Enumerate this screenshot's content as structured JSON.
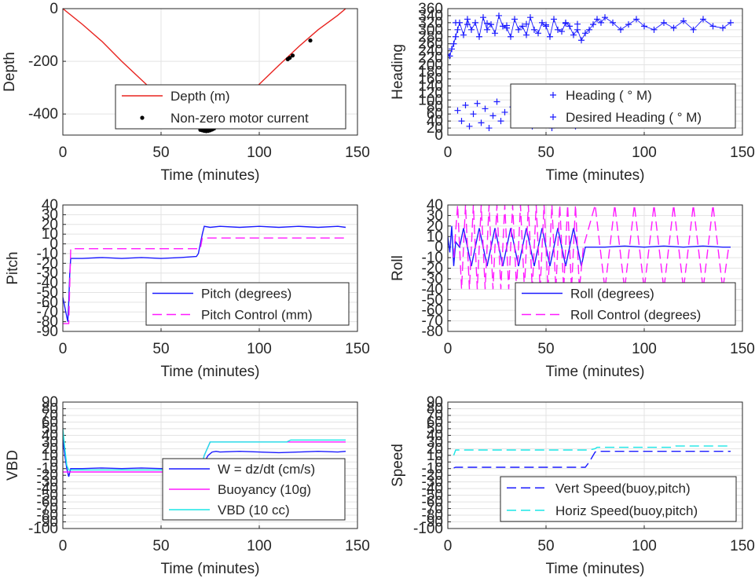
{
  "colors": {
    "red": "#e8231f",
    "blue": "#1a1aff",
    "magenta": "#ff1aff",
    "cyan": "#1ae6e6",
    "black": "#000000",
    "grid": "#e3e3e3",
    "axis": "#262626"
  },
  "chart_data": [
    {
      "id": "depth",
      "type": "line",
      "xlabel": "Time (minutes)",
      "ylabel": "Depth",
      "xlim": [
        0,
        150
      ],
      "ylim": [
        -480,
        0
      ],
      "xticks": [
        0,
        50,
        100,
        150
      ],
      "yticks": [
        0,
        -200,
        -400
      ],
      "ytick_labels": [
        "0",
        "-200",
        "-400"
      ],
      "grid": true,
      "legend_position": "bottom-right",
      "legend": [
        "Depth (m)",
        "Non-zero motor current"
      ],
      "series": [
        {
          "name": "Depth (m)",
          "style": "line",
          "color": "red",
          "x": [
            0,
            10,
            20,
            30,
            40,
            50,
            60,
            66,
            70,
            72,
            74,
            76,
            80,
            90,
            100,
            110,
            120,
            130,
            140,
            144
          ],
          "y": [
            0,
            -60,
            -125,
            -200,
            -270,
            -340,
            -405,
            -442,
            -460,
            -464,
            -462,
            -455,
            -428,
            -357,
            -287,
            -215,
            -145,
            -80,
            -25,
            0
          ]
        },
        {
          "name": "Non-zero motor current",
          "style": "dot",
          "color": "black",
          "x": [
            70,
            71,
            72,
            73,
            74,
            75,
            76,
            77,
            114.5,
            115.5,
            117,
            126
          ],
          "y": [
            -460,
            -462,
            -464,
            -465,
            -464,
            -462,
            -459,
            -455,
            -192,
            -187,
            -178,
            -121
          ]
        }
      ]
    },
    {
      "id": "heading",
      "type": "scatter",
      "xlabel": "Time (minutes)",
      "ylabel": "Heading",
      "xlim": [
        0,
        150
      ],
      "ylim": [
        0,
        360
      ],
      "xticks": [
        0,
        50,
        100,
        150
      ],
      "yticks": [
        0,
        20,
        40,
        60,
        80,
        100,
        120,
        140,
        160,
        180,
        200,
        220,
        240,
        260,
        280,
        300,
        320,
        340,
        360
      ],
      "grid": true,
      "legend_position": "bottom-right",
      "legend": [
        "Heading ( ° M)",
        "Desired Heading ( ° M)"
      ],
      "series": [
        {
          "name": "Heading ( ° M)",
          "style": "plus-line",
          "color": "blue",
          "x": [
            0,
            1,
            2,
            3,
            4,
            5,
            6,
            8,
            10,
            12,
            14,
            16,
            18,
            20,
            22,
            24,
            26,
            28,
            30,
            32,
            34,
            36,
            38,
            40,
            42,
            44,
            46,
            48,
            50,
            52,
            54,
            56,
            58,
            60,
            62,
            64,
            66,
            68,
            70,
            72,
            74,
            76,
            78,
            80,
            84,
            88,
            92,
            96,
            100,
            105,
            110,
            115,
            120,
            125,
            130,
            135,
            140,
            144
          ],
          "y": [
            230,
            225,
            245,
            260,
            280,
            300,
            320,
            285,
            330,
            300,
            320,
            280,
            335,
            300,
            315,
            290,
            340,
            310,
            305,
            280,
            330,
            300,
            310,
            285,
            335,
            300,
            290,
            320,
            310,
            280,
            330,
            300,
            295,
            320,
            310,
            285,
            300,
            270,
            290,
            300,
            315,
            330,
            320,
            335,
            320,
            300,
            315,
            330,
            310,
            300,
            320,
            305,
            325,
            300,
            330,
            310,
            305,
            320
          ]
        },
        {
          "name": "Heading low band",
          "style": "plus",
          "color": "blue",
          "x": [
            5,
            7,
            9,
            11,
            13,
            15,
            17,
            19,
            21,
            23,
            25,
            27,
            29,
            33,
            35,
            37,
            39,
            41,
            43,
            45,
            47,
            49,
            51,
            53,
            55,
            57,
            59,
            61,
            63,
            65
          ],
          "y": [
            70,
            40,
            85,
            25,
            60,
            90,
            35,
            75,
            20,
            55,
            95,
            40,
            65,
            80,
            30,
            60,
            45,
            85,
            25,
            70,
            50,
            35,
            75,
            20,
            60,
            45,
            30,
            55,
            40,
            25
          ]
        },
        {
          "name": "Desired Heading ( ° M)",
          "style": "plus",
          "color": "blue",
          "x": [
            4,
            10,
            20,
            30,
            40,
            50,
            60,
            66
          ],
          "y": [
            320,
            315,
            318,
            312,
            316,
            314,
            318,
            316
          ]
        }
      ]
    },
    {
      "id": "pitch",
      "type": "line",
      "xlabel": "Time (minutes)",
      "ylabel": "Pitch",
      "xlim": [
        0,
        150
      ],
      "ylim": [
        -90,
        40
      ],
      "xticks": [
        0,
        50,
        100,
        150
      ],
      "yticks": [
        40,
        30,
        20,
        10,
        0,
        -10,
        -20,
        -30,
        -40,
        -50,
        -60,
        -70,
        -80,
        -90
      ],
      "ytick_labels": [
        "40",
        "30",
        "20",
        "10",
        "0",
        "-10",
        "-20",
        "-30",
        "-40",
        "-50",
        "-60",
        "-70",
        "-80",
        "-90"
      ],
      "grid": true,
      "legend_position": "bottom-right",
      "legend": [
        "Pitch (degrees)",
        "Pitch Control (mm)"
      ],
      "series": [
        {
          "name": "Pitch (degrees)",
          "style": "line",
          "color": "blue",
          "x": [
            0,
            1,
            2,
            2.5,
            3,
            3.5,
            4,
            10,
            20,
            30,
            40,
            50,
            60,
            68,
            69,
            70,
            71,
            72,
            75,
            80,
            90,
            100,
            110,
            120,
            130,
            140,
            144
          ],
          "y": [
            -55,
            -65,
            -75,
            -80,
            -60,
            -30,
            -15,
            -15,
            -14,
            -15,
            -14,
            -15,
            -14,
            -13,
            -10,
            0,
            10,
            18,
            17,
            18,
            17,
            18,
            17,
            18,
            17,
            18,
            17
          ]
        },
        {
          "name": "Pitch Control (mm)",
          "style": "dash",
          "color": "magenta",
          "x": [
            0,
            3,
            4,
            70,
            71,
            72,
            144
          ],
          "y": [
            -82,
            -82,
            -5,
            -5,
            6,
            6,
            6
          ]
        }
      ]
    },
    {
      "id": "roll",
      "type": "line",
      "xlabel": "Time (minutes)",
      "ylabel": "Roll",
      "xlim": [
        0,
        150
      ],
      "ylim": [
        -80,
        40
      ],
      "xticks": [
        0,
        50,
        100,
        150
      ],
      "yticks": [
        40,
        30,
        20,
        10,
        0,
        -10,
        -20,
        -30,
        -40,
        -50,
        -60,
        -70,
        -80
      ],
      "ytick_labels": [
        "40",
        "30",
        "20",
        "10",
        "0",
        "-10",
        "-20",
        "-30",
        "-40",
        "-50",
        "-60",
        "-70",
        "-80"
      ],
      "grid": true,
      "legend_position": "bottom-right",
      "legend": [
        "Roll (degrees)",
        "Roll Control (degrees)"
      ],
      "series": [
        {
          "name": "Roll (degrees)",
          "style": "line",
          "color": "blue",
          "x": [
            0,
            1,
            2,
            3,
            4,
            6,
            8,
            10,
            12,
            14,
            16,
            18,
            20,
            22,
            24,
            26,
            28,
            30,
            32,
            34,
            36,
            38,
            40,
            42,
            44,
            46,
            48,
            50,
            52,
            54,
            56,
            58,
            60,
            62,
            64,
            66,
            68,
            70,
            80,
            90,
            100,
            110,
            120,
            130,
            140,
            144
          ],
          "y": [
            10,
            -5,
            20,
            -18,
            5,
            0,
            18,
            0,
            -18,
            0,
            18,
            0,
            -18,
            0,
            18,
            0,
            -18,
            0,
            18,
            0,
            -18,
            0,
            18,
            0,
            -18,
            0,
            18,
            0,
            -18,
            0,
            18,
            0,
            -18,
            0,
            18,
            0,
            -18,
            0,
            0,
            1,
            0,
            1,
            0,
            1,
            0,
            0
          ]
        },
        {
          "name": "Roll Control (degrees)",
          "style": "dash",
          "color": "magenta",
          "x": [
            3,
            5,
            7,
            9,
            11,
            13,
            15,
            17,
            19,
            21,
            23,
            25,
            27,
            29,
            31,
            33,
            35,
            37,
            39,
            41,
            43,
            45,
            47,
            49,
            51,
            53,
            55,
            57,
            59,
            61,
            63,
            65,
            67,
            69,
            75,
            80,
            85,
            90,
            95,
            100,
            105,
            110,
            115,
            120,
            125,
            130,
            135,
            140,
            143
          ],
          "y": [
            -10,
            40,
            -40,
            40,
            -40,
            40,
            -40,
            40,
            -40,
            40,
            -40,
            40,
            -40,
            40,
            -40,
            40,
            -40,
            40,
            -40,
            40,
            -40,
            40,
            -40,
            40,
            -40,
            40,
            -40,
            40,
            -40,
            40,
            -40,
            40,
            -40,
            0,
            40,
            -40,
            40,
            -40,
            40,
            -40,
            40,
            -40,
            40,
            -40,
            40,
            -40,
            40,
            -40,
            0
          ]
        }
      ]
    },
    {
      "id": "vbd",
      "type": "line",
      "xlabel": "Time (minutes)",
      "ylabel": "VBD",
      "xlim": [
        0,
        150
      ],
      "ylim": [
        -100,
        90
      ],
      "xticks": [
        0,
        50,
        100,
        150
      ],
      "yticks": [
        90,
        80,
        70,
        60,
        50,
        40,
        30,
        20,
        10,
        0,
        -10,
        -20,
        -30,
        -40,
        -50,
        -60,
        -70,
        -80,
        -90,
        -100
      ],
      "ytick_labels": [
        "90",
        "80",
        "70",
        "60",
        "50",
        "40",
        "30",
        "20",
        "10",
        "0",
        "-10",
        "-20",
        "-30",
        "-40",
        "-50",
        "-60",
        "-70",
        "-80",
        "-90",
        "-100"
      ],
      "grid": true,
      "legend_position": "bottom-right",
      "legend": [
        "W = dz/dt (cm/s)",
        "Buoyancy (10g)",
        "VBD (10 cc)"
      ],
      "series": [
        {
          "name": "W = dz/dt (cm/s)",
          "style": "line",
          "color": "blue",
          "x": [
            0,
            1,
            2,
            3,
            4,
            10,
            20,
            30,
            40,
            50,
            60,
            70,
            72,
            74,
            76,
            78,
            80,
            90,
            100,
            110,
            120,
            130,
            140,
            144
          ],
          "y": [
            35,
            10,
            -10,
            -22,
            -10,
            -10,
            -9,
            -10,
            -9,
            -10,
            -9,
            -8,
            0,
            10,
            15,
            16,
            15,
            16,
            15,
            14,
            15,
            16,
            15,
            16
          ]
        },
        {
          "name": "Buoyancy (10g)",
          "style": "line",
          "color": "magenta",
          "x": [
            0,
            3,
            4,
            70,
            72,
            75,
            76,
            144
          ],
          "y": [
            -15,
            -15,
            -15,
            -15,
            10,
            30,
            30,
            30
          ]
        },
        {
          "name": "VBD (10 cc)",
          "style": "line",
          "color": "cyan",
          "x": [
            0,
            1,
            2,
            3,
            4,
            70,
            72,
            75,
            76,
            114,
            116,
            144
          ],
          "y": [
            50,
            20,
            -5,
            -12,
            -12,
            -12,
            10,
            30,
            30,
            30,
            33,
            33
          ]
        }
      ]
    },
    {
      "id": "speed",
      "type": "line",
      "xlabel": "Time (minutes)",
      "ylabel": "Speed",
      "xlim": [
        0,
        150
      ],
      "ylim": [
        -100,
        90
      ],
      "xticks": [
        0,
        50,
        100,
        150
      ],
      "yticks": [
        90,
        80,
        70,
        60,
        50,
        40,
        30,
        20,
        10,
        0,
        -10,
        -20,
        -30,
        -40,
        -50,
        -60,
        -70,
        -80,
        -90,
        -100
      ],
      "ytick_labels": [
        "90",
        "80",
        "70",
        "60",
        "50",
        "40",
        "30",
        "20",
        "10",
        "0",
        "-10",
        "-20",
        "-30",
        "-40",
        "-50",
        "-60",
        "-70",
        "-80",
        "-90",
        "-100"
      ],
      "grid": true,
      "legend_position": "bottom-right",
      "legend": [
        "Vert Speed(buoy,pitch)",
        "Horiz Speed(buoy,pitch)"
      ],
      "series": [
        {
          "name": "Vert Speed(buoy,pitch)",
          "style": "dash",
          "color": "blue",
          "x": [
            3,
            4,
            70,
            72,
            75,
            76,
            144
          ],
          "y": [
            -9,
            -8,
            -8,
            0,
            15,
            16,
            16
          ]
        },
        {
          "name": "Horiz Speed(buoy,pitch)",
          "style": "dash",
          "color": "cyan",
          "x": [
            3,
            4,
            70,
            72,
            75,
            76,
            114,
            116,
            144
          ],
          "y": [
            10,
            18,
            18,
            18,
            20,
            22,
            22,
            24,
            24
          ]
        }
      ]
    }
  ]
}
